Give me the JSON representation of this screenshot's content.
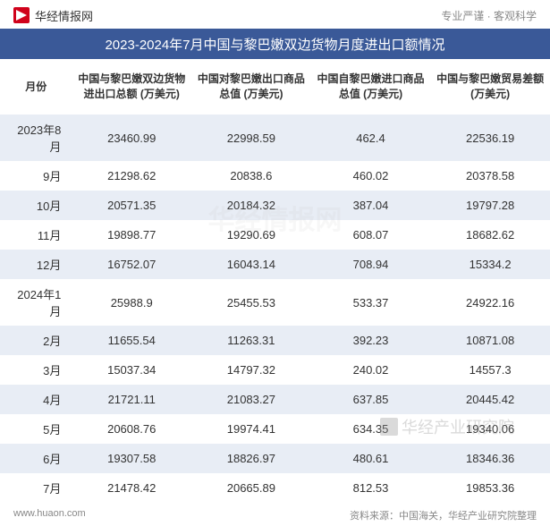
{
  "header": {
    "site_name": "华经情报网",
    "tagline": "专业严谨 · 客观科学"
  },
  "title": "2023-2024年7月中国与黎巴嫩双边货物月度进出口额情况",
  "table": {
    "columns": [
      "月份",
      "中国与黎巴嫩双边货物进出口总额\n(万美元)",
      "中国对黎巴嫩出口商品总值\n(万美元)",
      "中国自黎巴嫩进口商品总值\n(万美元)",
      "中国与黎巴嫩贸易差额\n(万美元)"
    ],
    "col_widths": [
      "80px",
      "133px",
      "133px",
      "133px",
      "133px"
    ],
    "header_fontsize": 12,
    "cell_fontsize": 13,
    "row_alt_bg": "#e8edf5",
    "row_bg": "#ffffff",
    "rows": [
      [
        "2023年8月",
        "23460.99",
        "22998.59",
        "462.4",
        "22536.19"
      ],
      [
        "9月",
        "21298.62",
        "20838.6",
        "460.02",
        "20378.58"
      ],
      [
        "10月",
        "20571.35",
        "20184.32",
        "387.04",
        "19797.28"
      ],
      [
        "11月",
        "19898.77",
        "19290.69",
        "608.07",
        "18682.62"
      ],
      [
        "12月",
        "16752.07",
        "16043.14",
        "708.94",
        "15334.2"
      ],
      [
        "2024年1月",
        "25988.9",
        "25455.53",
        "533.37",
        "24922.16"
      ],
      [
        "2月",
        "11655.54",
        "11263.31",
        "392.23",
        "10871.08"
      ],
      [
        "3月",
        "15037.34",
        "14797.32",
        "240.02",
        "14557.3"
      ],
      [
        "4月",
        "21721.11",
        "21083.27",
        "637.85",
        "20445.42"
      ],
      [
        "5月",
        "20608.76",
        "19974.41",
        "634.35",
        "19340.06"
      ],
      [
        "6月",
        "19307.58",
        "18826.97",
        "480.61",
        "18346.36"
      ],
      [
        "7月",
        "21478.42",
        "20665.89",
        "812.53",
        "19853.36"
      ]
    ]
  },
  "footer": {
    "url": "www.huaon.com",
    "source": "资料来源：中国海关，华经产业研究院整理"
  },
  "watermark": {
    "text_main": "华经产业研究院",
    "text_center": "华经情报网"
  },
  "colors": {
    "title_bg": "#3a5998",
    "title_text": "#ffffff",
    "logo": "#d0021b",
    "text": "#333333",
    "muted": "#888888"
  }
}
